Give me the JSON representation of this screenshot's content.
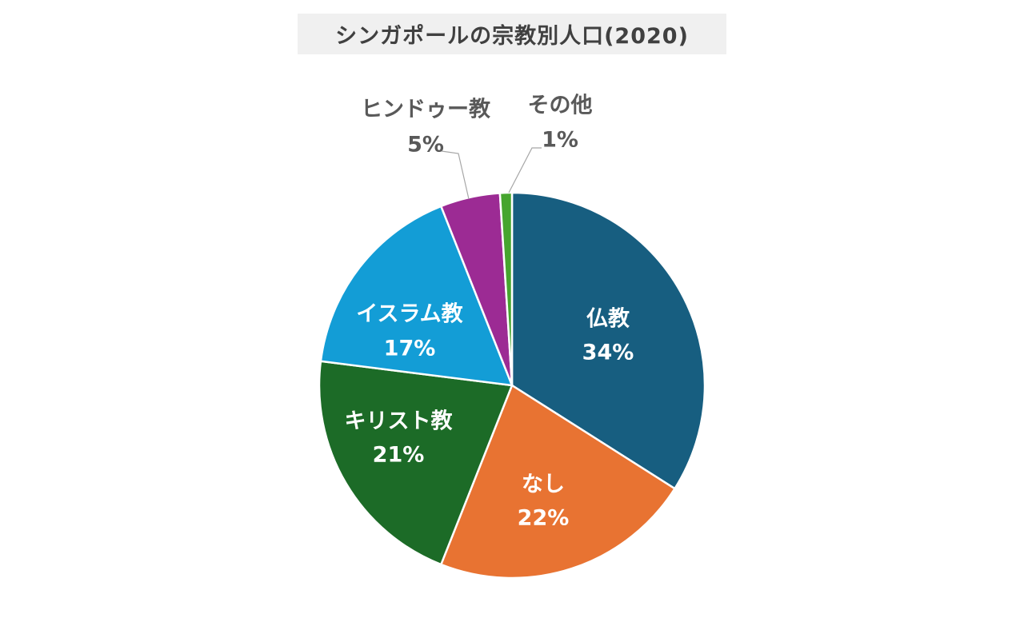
{
  "chart_data": {
    "type": "pie",
    "title": "シンガポールの宗教別人口(2020)",
    "slices": [
      {
        "label": "仏教",
        "value": 34,
        "display": "34%",
        "color": "#175e80",
        "label_color": "#ffffff",
        "placement": "inside"
      },
      {
        "label": "なし",
        "value": 22,
        "display": "22%",
        "color": "#e87332",
        "label_color": "#ffffff",
        "placement": "inside"
      },
      {
        "label": "キリスト教",
        "value": 21,
        "display": "21%",
        "color": "#1c6b27",
        "label_color": "#ffffff",
        "placement": "inside"
      },
      {
        "label": "イスラム教",
        "value": 17,
        "display": "17%",
        "color": "#139dd6",
        "label_color": "#ffffff",
        "placement": "inside"
      },
      {
        "label": "ヒンドゥー教",
        "value": 5,
        "display": "5%",
        "color": "#9c2b94",
        "label_color": "#595959",
        "placement": "outside"
      },
      {
        "label": "その他",
        "value": 1,
        "display": "1%",
        "color": "#46a52e",
        "label_color": "#595959",
        "placement": "outside"
      }
    ]
  }
}
